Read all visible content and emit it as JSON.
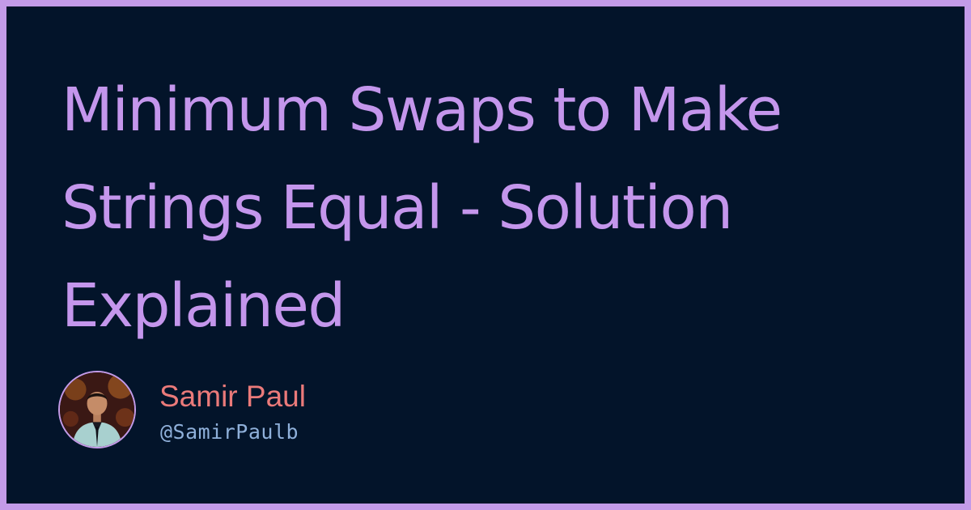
{
  "post": {
    "title": "Minimum Swaps to Make Strings Equal - Solution Explained"
  },
  "author": {
    "name": "Samir Paul",
    "handle": "@SamirPaulb",
    "avatar_icon": "person-avatar-photo"
  },
  "colors": {
    "frame": "#c49be8",
    "background": "#03142a",
    "title": "#c496ec",
    "name": "#eb7a7a",
    "handle": "#8fb0da"
  }
}
